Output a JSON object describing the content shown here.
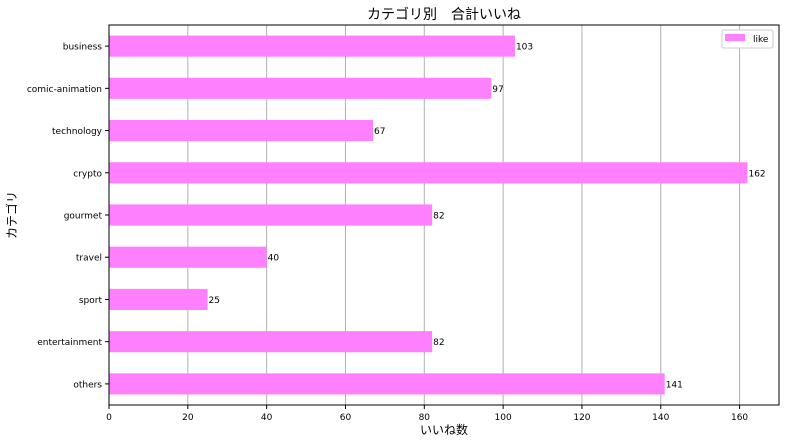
{
  "chart_data": {
    "type": "bar",
    "orientation": "horizontal",
    "title": "カテゴリ別　合計いいね",
    "xlabel": "いいね数",
    "ylabel": "カテゴリ",
    "categories": [
      "business",
      "comic-animation",
      "technology",
      "crypto",
      "gourmet",
      "travel",
      "sport",
      "entertainment",
      "others"
    ],
    "series": [
      {
        "name": "like",
        "values": [
          103,
          97,
          67,
          162,
          82,
          40,
          25,
          82,
          141
        ],
        "color": "#ff80ff"
      }
    ],
    "xlim": [
      0,
      170
    ],
    "xticks": [
      0,
      20,
      40,
      60,
      80,
      100,
      120,
      140,
      160
    ],
    "grid": "vertical",
    "legend": "top-right",
    "data_labels": true
  }
}
